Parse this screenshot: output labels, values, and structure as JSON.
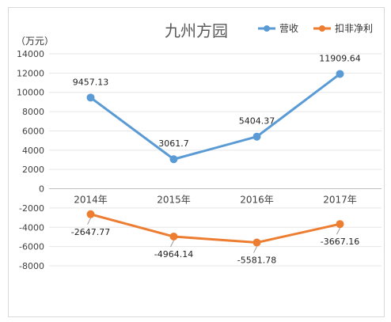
{
  "chart_data": {
    "type": "line",
    "title": "九州方园",
    "unit_label": "（万元）",
    "categories": [
      "2014年",
      "2015年",
      "2016年",
      "2017年"
    ],
    "ylim": [
      -8000,
      14000
    ],
    "yticks": [
      14000,
      12000,
      10000,
      8000,
      6000,
      4000,
      2000,
      0,
      -2000,
      -4000,
      -6000,
      -8000
    ],
    "grid": true,
    "legend_position": "top-right",
    "series": [
      {
        "name": "营收",
        "color": "#5b9bd5",
        "values": [
          9457.13,
          3061.7,
          5404.37,
          11909.64
        ],
        "labels": [
          "9457.13",
          "3061.7",
          "5404.37",
          "11909.64"
        ]
      },
      {
        "name": "扣非净利",
        "color": "#ed7d31",
        "values": [
          -2647.77,
          -4964.14,
          -5581.78,
          -3667.16
        ],
        "labels": [
          "-2647.77",
          "-4964.14",
          "-5581.78",
          "-3667.16"
        ]
      }
    ]
  }
}
